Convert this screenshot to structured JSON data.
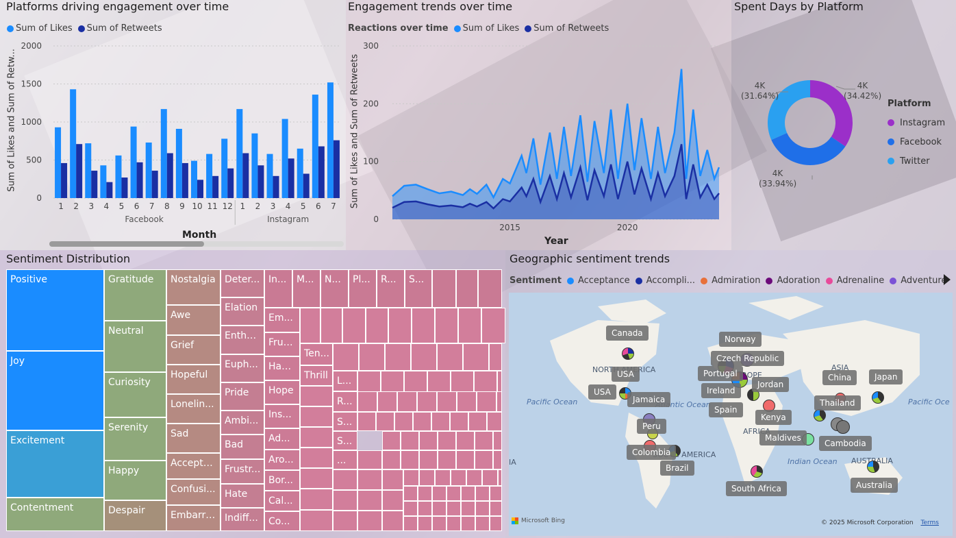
{
  "colors": {
    "likes": "#1a8cff",
    "retweets": "#1a2fa3",
    "instagram": "#9b2fc9",
    "facebook": "#1f6fe8",
    "twitter": "#2aa0f0"
  },
  "bar_panel": {
    "title": "Platforms driving engagement over time",
    "legend": [
      "Sum of Likes",
      "Sum of Retweets"
    ],
    "ylabel": "Sum of Likes and Sum of Retw...",
    "xlabel": "Month",
    "groups": [
      "Facebook",
      "Instagram"
    ]
  },
  "line_panel": {
    "title": "Engagement trends over time",
    "legend_title": "Reactions over time",
    "legend": [
      "Sum of Likes",
      "Sum of Retweets"
    ],
    "ylabel": "Sum of Likes and Sum of Retweets",
    "xlabel": "Year"
  },
  "donut_panel": {
    "title": "Spent Days by Platform",
    "legend_title": "Platform",
    "legend": [
      "Instagram",
      "Facebook",
      "Twitter"
    ],
    "labels": [
      {
        "value": "4K",
        "pct": "(34.42%)"
      },
      {
        "value": "4K",
        "pct": "(33.94%)"
      },
      {
        "value": "4K",
        "pct": "(31.64%)"
      }
    ]
  },
  "treemap_panel": {
    "title": "Sentiment Distribution",
    "cells": {
      "positive": "Positive",
      "joy": "Joy",
      "excitement": "Excitement",
      "contentment": "Contentment",
      "gratitude": "Gratitude",
      "neutral": "Neutral",
      "curiosity": "Curiosity",
      "serenity": "Serenity",
      "happy": "Happy",
      "despair": "Despair",
      "nostalgia": "Nostalgia",
      "awe": "Awe",
      "grief": "Grief",
      "hopeful": "Hopeful",
      "loneliness": "Lonelin...",
      "sad": "Sad",
      "acceptance": "Accepta...",
      "confusion": "Confusi...",
      "embarrassed": "Embarra...",
      "determination": "Deter...",
      "elation": "Elation",
      "enthusiasm": "Enthu...",
      "euphoria": "Euph...",
      "pride": "Pride",
      "ambivalence": "Ambi...",
      "bad": "Bad",
      "frustrated": "Frustr...",
      "hate": "Hate",
      "indifference": "Indiff...",
      "in": "In...",
      "m": "M...",
      "n": "N...",
      "pl": "Pl...",
      "r": "R...",
      "s": "S...",
      "em": "Em...",
      "frus": "Frus...",
      "hap": "Hap...",
      "hope": "Hope",
      "ins": "Ins...",
      "ad": "Ad...",
      "aro": "Aro...",
      "bor": "Bor...",
      "cal": "Cal...",
      "co": "Co...",
      "ten": "Ten...",
      "thrill": "Thrill",
      "l": "L...",
      "r2": "R...",
      "s2": "S...",
      "s3": "S...",
      "dots": "..."
    }
  },
  "map_panel": {
    "title": "Geographic sentiment trends",
    "legend_title": "Sentiment",
    "legend": [
      {
        "label": "Acceptance",
        "color": "#1a8cff"
      },
      {
        "label": "Accompli...",
        "color": "#1a2fa3"
      },
      {
        "label": "Admiration",
        "color": "#e8703a"
      },
      {
        "label": "Adoration",
        "color": "#6b0a7a"
      },
      {
        "label": "Adrenaline",
        "color": "#e84a9a"
      },
      {
        "label": "Adventure",
        "color": "#7b52d6"
      }
    ],
    "countries": [
      "Canada",
      "Norway",
      "Czech Republic",
      "Portugal",
      "USA",
      "USA",
      "Jordan",
      "Ireland",
      "Jamaica",
      "Spain",
      "China",
      "Japan",
      "Thailand",
      "Kenya",
      "Peru",
      "Maldives",
      "Cambodia",
      "Colombia",
      "Brazil",
      "South Africa",
      "Australia"
    ],
    "regions": [
      "NORTH AMERICA",
      "EUROPE",
      "ASIA",
      "AFRICA",
      "SOUTH AMERICA",
      "AUSTRALIA",
      "Pacific Ocean",
      "Atlantic Ocean",
      "Indian Ocean",
      "Pacific Oce",
      "IA"
    ],
    "bing": "Microsoft Bing",
    "copyright": "© 2025 Microsoft Corporation",
    "terms": "Terms"
  },
  "chart_data": [
    {
      "type": "bar",
      "title": "Platforms driving engagement over time",
      "xlabel": "Month",
      "ylabel": "Sum of Likes and Sum of Retw...",
      "ylim": [
        0,
        2000
      ],
      "yticks": [
        0,
        500,
        1000,
        1500,
        2000
      ],
      "categories": [
        "1",
        "2",
        "3",
        "4",
        "5",
        "6",
        "7",
        "8",
        "9",
        "10",
        "11",
        "12",
        "1",
        "2",
        "3",
        "4",
        "5",
        "6",
        "7"
      ],
      "groups": [
        {
          "name": "Facebook",
          "from": 0,
          "to": 11
        },
        {
          "name": "Instagram",
          "from": 12,
          "to": 18
        }
      ],
      "series": [
        {
          "name": "Sum of Likes",
          "values": [
            930,
            1430,
            720,
            430,
            560,
            940,
            730,
            1170,
            910,
            490,
            580,
            780,
            1170,
            850,
            580,
            1040,
            650,
            1360,
            1520
          ]
        },
        {
          "name": "Sum of Retweets",
          "values": [
            460,
            710,
            360,
            210,
            270,
            470,
            360,
            590,
            460,
            240,
            290,
            390,
            590,
            430,
            290,
            520,
            320,
            680,
            760
          ]
        }
      ]
    },
    {
      "type": "area",
      "title": "Engagement trends over time",
      "xlabel": "Year",
      "ylabel": "Sum of Likes and Sum of Retweets",
      "ylim": [
        0,
        300
      ],
      "yticks": [
        0,
        100,
        200,
        300
      ],
      "xticks": [
        2015,
        2020
      ],
      "xlim": [
        2010,
        2023.9
      ],
      "series": [
        {
          "name": "Sum of Likes",
          "points": [
            [
              2010.0,
              40
            ],
            [
              2010.5,
              58
            ],
            [
              2011.0,
              60
            ],
            [
              2011.5,
              52
            ],
            [
              2012.0,
              45
            ],
            [
              2012.5,
              48
            ],
            [
              2013.0,
              42
            ],
            [
              2013.3,
              52
            ],
            [
              2013.6,
              44
            ],
            [
              2014.0,
              60
            ],
            [
              2014.3,
              38
            ],
            [
              2014.7,
              70
            ],
            [
              2015.0,
              62
            ],
            [
              2015.5,
              110
            ],
            [
              2015.7,
              80
            ],
            [
              2016.0,
              140
            ],
            [
              2016.3,
              60
            ],
            [
              2016.7,
              150
            ],
            [
              2017.0,
              70
            ],
            [
              2017.3,
              160
            ],
            [
              2017.6,
              75
            ],
            [
              2018.0,
              180
            ],
            [
              2018.3,
              65
            ],
            [
              2018.6,
              170
            ],
            [
              2019.0,
              80
            ],
            [
              2019.3,
              190
            ],
            [
              2019.6,
              70
            ],
            [
              2020.0,
              200
            ],
            [
              2020.3,
              85
            ],
            [
              2020.6,
              175
            ],
            [
              2021.0,
              70
            ],
            [
              2021.3,
              160
            ],
            [
              2021.6,
              80
            ],
            [
              2022.0,
              150
            ],
            [
              2022.3,
              260
            ],
            [
              2022.5,
              70
            ],
            [
              2022.8,
              190
            ],
            [
              2023.1,
              75
            ],
            [
              2023.4,
              120
            ],
            [
              2023.7,
              70
            ],
            [
              2023.9,
              90
            ]
          ]
        },
        {
          "name": "Sum of Retweets",
          "points": [
            [
              2010.0,
              20
            ],
            [
              2010.5,
              30
            ],
            [
              2011.0,
              31
            ],
            [
              2011.5,
              26
            ],
            [
              2012.0,
              22
            ],
            [
              2012.5,
              24
            ],
            [
              2013.0,
              21
            ],
            [
              2013.3,
              27
            ],
            [
              2013.6,
              22
            ],
            [
              2014.0,
              30
            ],
            [
              2014.3,
              19
            ],
            [
              2014.7,
              35
            ],
            [
              2015.0,
              31
            ],
            [
              2015.5,
              55
            ],
            [
              2015.7,
              40
            ],
            [
              2016.0,
              70
            ],
            [
              2016.3,
              30
            ],
            [
              2016.7,
              75
            ],
            [
              2017.0,
              35
            ],
            [
              2017.3,
              80
            ],
            [
              2017.6,
              38
            ],
            [
              2018.0,
              90
            ],
            [
              2018.3,
              33
            ],
            [
              2018.6,
              85
            ],
            [
              2019.0,
              40
            ],
            [
              2019.3,
              95
            ],
            [
              2019.6,
              35
            ],
            [
              2020.0,
              100
            ],
            [
              2020.3,
              43
            ],
            [
              2020.6,
              88
            ],
            [
              2021.0,
              35
            ],
            [
              2021.3,
              80
            ],
            [
              2021.6,
              40
            ],
            [
              2022.0,
              75
            ],
            [
              2022.3,
              130
            ],
            [
              2022.5,
              35
            ],
            [
              2022.8,
              95
            ],
            [
              2023.1,
              38
            ],
            [
              2023.4,
              60
            ],
            [
              2023.7,
              35
            ],
            [
              2023.9,
              45
            ]
          ]
        }
      ]
    },
    {
      "type": "pie",
      "title": "Spent Days by Platform",
      "categories": [
        "Instagram",
        "Facebook",
        "Twitter"
      ],
      "values": [
        34.42,
        33.94,
        31.64
      ],
      "labels": [
        "4K",
        "4K",
        "4K"
      ]
    }
  ]
}
